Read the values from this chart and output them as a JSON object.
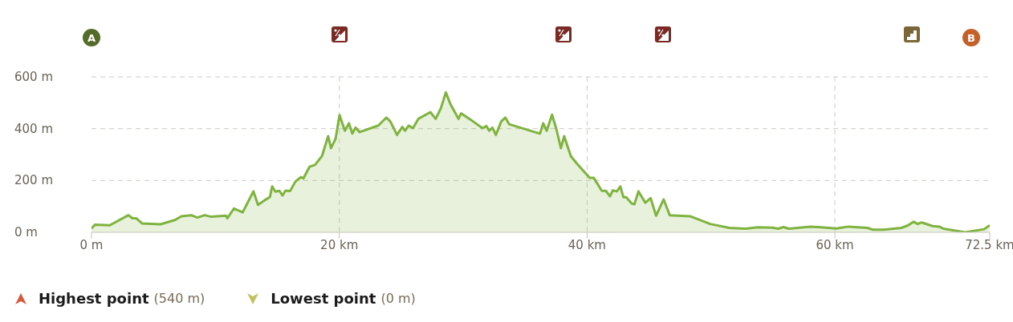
{
  "chart_data": {
    "type": "area",
    "x": [
      0,
      0.28,
      1.47,
      2.98,
      3.3,
      3.62,
      4.1,
      5.57,
      6.76,
      7.25,
      8.05,
      8.54,
      9.13,
      9.67,
      10.85,
      10.96,
      11.5,
      12.2,
      13.07,
      13.44,
      13.98,
      14.4,
      14.58,
      14.84,
      15.17,
      15.42,
      15.66,
      16.03,
      16.46,
      16.9,
      17.1,
      17.6,
      18.04,
      18.6,
      19.1,
      19.33,
      19.7,
      20.02,
      20.45,
      20.78,
      21.05,
      21.31,
      21.64,
      23.15,
      23.8,
      24.12,
      24.66,
      25.09,
      25.3,
      25.6,
      25.95,
      26.38,
      27.35,
      27.78,
      28.2,
      28.6,
      28.97,
      29.62,
      29.83,
      30.8,
      31.56,
      31.88,
      32.1,
      32.36,
      32.64,
      33.07,
      33.4,
      33.72,
      35.77,
      36.2,
      36.46,
      36.74,
      37.17,
      37.5,
      37.89,
      38.15,
      38.69,
      39.22,
      40.21,
      40.54,
      41.19,
      41.52,
      41.85,
      42.07,
      42.4,
      42.68,
      42.94,
      43.16,
      43.6,
      43.82,
      44.15,
      44.7,
      45.13,
      45.57,
      46.18,
      46.67,
      48.31,
      49.94,
      51.48,
      52.79,
      53.78,
      54.98,
      55.42,
      55.85,
      56.29,
      58.04,
      60.12,
      61.1,
      62.63,
      63.07,
      63.95,
      65.37,
      65.92,
      66.36,
      66.68,
      67.01,
      67.89,
      68.43,
      68.76,
      70.51,
      72.05,
      72.5
    ],
    "series": [
      {
        "color": "#7fb33f",
        "values": [
          15,
          29,
          27,
          66,
          54,
          54,
          34,
          31,
          48,
          62,
          66,
          57,
          66,
          60,
          64,
          54,
          92,
          77,
          158,
          106,
          124,
          136,
          177,
          157,
          160,
          142,
          161,
          159,
          196,
          213,
          208,
          253,
          260,
          294,
          371,
          325,
          361,
          452,
          392,
          421,
          381,
          404,
          387,
          412,
          443,
          428,
          376,
          407,
          392,
          412,
          402,
          438,
          464,
          438,
          479,
          540,
          495,
          438,
          459,
          428,
          402,
          410,
          392,
          404,
          376,
          428,
          443,
          417,
          387,
          381,
          421,
          392,
          454,
          402,
          325,
          371,
          294,
          263,
          210,
          210,
          160,
          160,
          139,
          162,
          158,
          177,
          135,
          135,
          111,
          108,
          158,
          114,
          132,
          64,
          127,
          66,
          62,
          32,
          17,
          14,
          19,
          18,
          14,
          20,
          14,
          22,
          15,
          22,
          17,
          10,
          10,
          17,
          27,
          41,
          32,
          38,
          24,
          22,
          14,
          0,
          12,
          27
        ]
      }
    ],
    "xlim": [
      0,
      72.5
    ],
    "xticks": [
      {
        "value": 0,
        "label": "0 m"
      },
      {
        "value": 20,
        "label": "20 km"
      },
      {
        "value": 40,
        "label": "40 km"
      },
      {
        "value": 60,
        "label": "60 km"
      },
      {
        "value": 72.5,
        "label": "72.5 km"
      }
    ],
    "ylim": [
      0,
      600
    ],
    "yticks": [
      {
        "value": 0,
        "label": "0 m"
      },
      {
        "value": 200,
        "label": "200 m"
      },
      {
        "value": 400,
        "label": "400 m"
      },
      {
        "value": 600,
        "label": "600 m"
      }
    ],
    "grid": true,
    "marker": "none",
    "annotations": [
      "A",
      "B",
      "Highest point",
      "(540 m)",
      "Lowest point",
      "(0 m)"
    ]
  }
}
